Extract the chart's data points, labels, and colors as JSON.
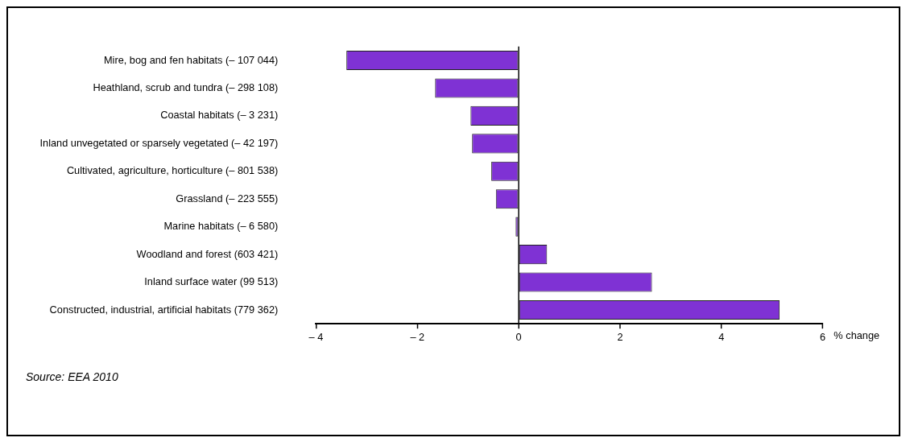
{
  "chart_data": {
    "type": "bar",
    "orientation": "horizontal",
    "categories": [
      "Mire, bog and fen habitats (– 107 044)",
      "Heathland, scrub and tundra (– 298 108)",
      "Coastal habitats (– 3 231)",
      "Inland unvegetated or sparsely vegetated (– 42 197)",
      "Cultivated, agriculture, horticulture (– 801 538)",
      "Grassland (– 223 555)",
      "Marine habitats (– 6 580)",
      "Woodland and forest (603 421)",
      "Inland surface water (99 513)",
      "Constructed, industrial, artificial habitats (779 362)"
    ],
    "values": [
      -3.4,
      -1.65,
      -0.95,
      -0.92,
      -0.54,
      -0.45,
      -0.06,
      0.56,
      2.63,
      5.15
    ],
    "color": "#7f32d4",
    "xlabel": "% change",
    "xlim": [
      -4,
      6
    ],
    "xticks": [
      {
        "value": -4,
        "label": "– 4"
      },
      {
        "value": -2,
        "label": "– 2"
      },
      0,
      2,
      4,
      6
    ],
    "grid": false,
    "ref_lines": [
      {
        "axis": "x",
        "value": 0,
        "color": "#000000"
      }
    ],
    "legend": false,
    "annotations": [
      "Source: EEA 2010"
    ]
  }
}
